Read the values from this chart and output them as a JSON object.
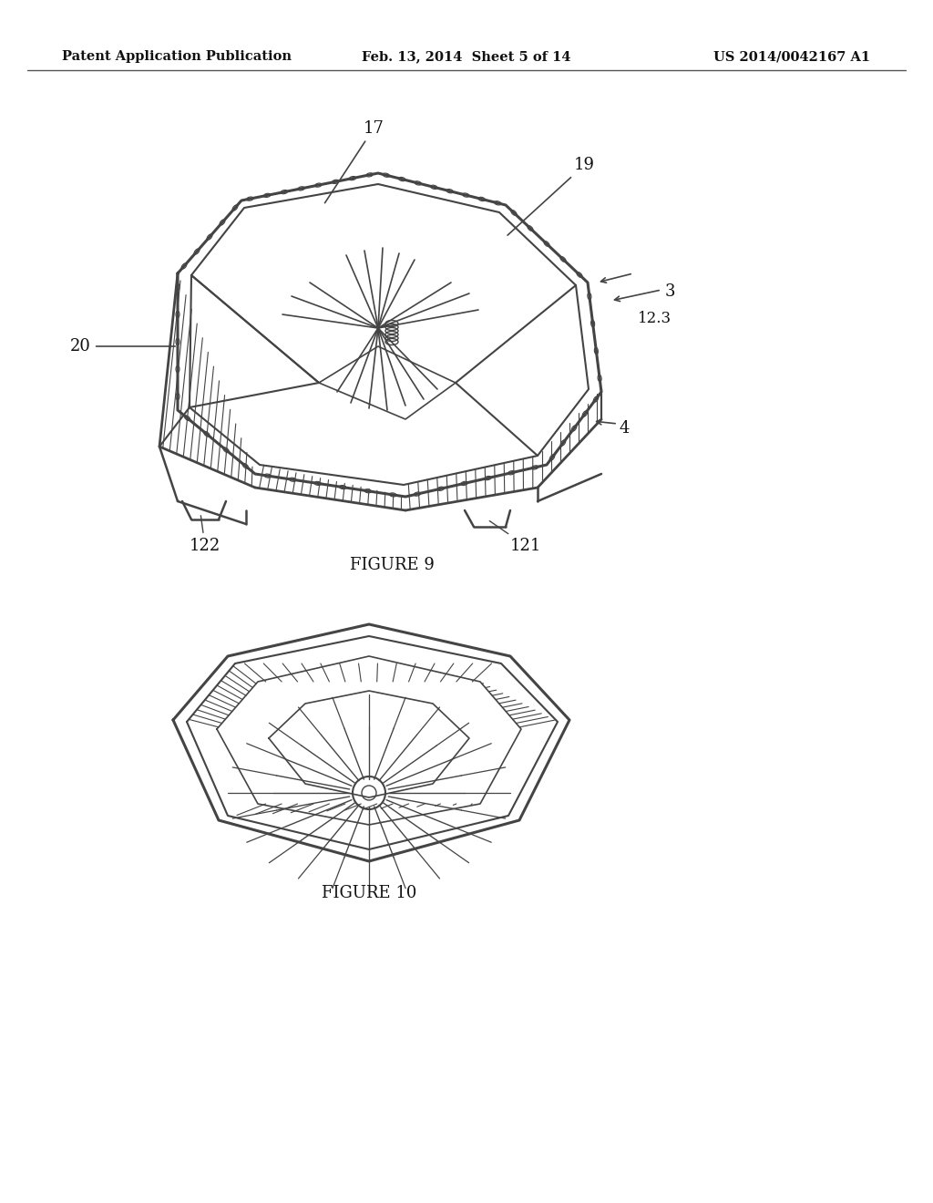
{
  "background_color": "#ffffff",
  "header_left": "Patent Application Publication",
  "header_center": "Feb. 13, 2014  Sheet 5 of 14",
  "header_right": "US 2014/0042167 A1",
  "header_fontsize": 10.5,
  "figure9_caption": "FIGURE 9",
  "figure10_caption": "FIGURE 10",
  "line_color": "#555555",
  "drawing_color": "#444444",
  "ann_color": "#111111",
  "ann_fontsize": 13
}
